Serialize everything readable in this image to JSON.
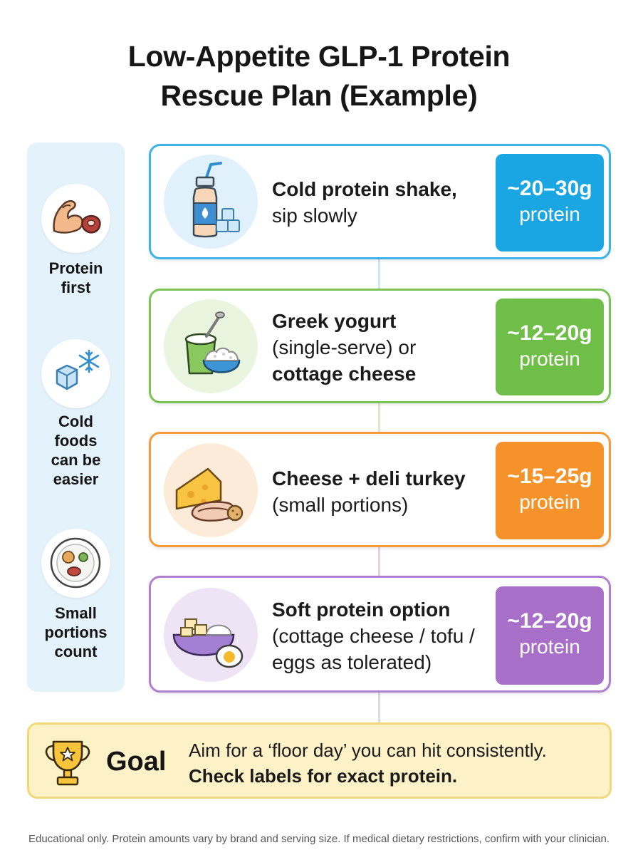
{
  "title": {
    "line1": "Low-Appetite GLP-1 Protein",
    "line2": "Rescue Plan (Example)"
  },
  "sidebar": {
    "tips": [
      {
        "icon": "flexed-arm-steak-icon",
        "line1": "Protein",
        "line2": "first",
        "line3": "",
        "line4": ""
      },
      {
        "icon": "ice-cube-snowflake-icon",
        "line1": "Cold",
        "line2": "foods",
        "line3": "can be",
        "line4": "easier"
      },
      {
        "icon": "small-plate-icon",
        "line1": "Small",
        "line2": "portions",
        "line3": "count",
        "line4": ""
      }
    ]
  },
  "cards": [
    {
      "icon": "protein-shake-bottle-icon",
      "line1": "Cold protein shake,",
      "line2": "sip slowly",
      "line3": "",
      "amount": "~20–30g",
      "unit": "protein",
      "color": "#1aa6e2",
      "border": "#3cb2e6"
    },
    {
      "icon": "yogurt-cottage-cheese-icon",
      "line1": "Greek yogurt",
      "line2": "(single-serve) or",
      "line3": "cottage cheese",
      "amount": "~12–20g",
      "unit": "protein",
      "color": "#6fbe47",
      "border": "#7cc457"
    },
    {
      "icon": "cheese-turkey-icon",
      "line1": "Cheese + deli turkey",
      "line2": "(small portions)",
      "line3": "",
      "amount": "~15–25g",
      "unit": "protein",
      "color": "#f5922a",
      "border": "#f29a3c"
    },
    {
      "icon": "tofu-egg-bowl-icon",
      "line1": "Soft protein option",
      "line2": "(cottage cheese / tofu /",
      "line3": "eggs as tolerated)",
      "amount": "~12–20g",
      "unit": "protein",
      "color": "#a86fc9",
      "border": "#b07fd0"
    }
  ],
  "goal": {
    "icon": "trophy-icon",
    "label": "Goal",
    "line1": "Aim for a ‘floor day’ you can hit consistently.",
    "line2": "Check labels for exact protein."
  },
  "footnote": "Educational only. Protein amounts vary by brand and serving size. If medical dietary restrictions, confirm with your clinician."
}
